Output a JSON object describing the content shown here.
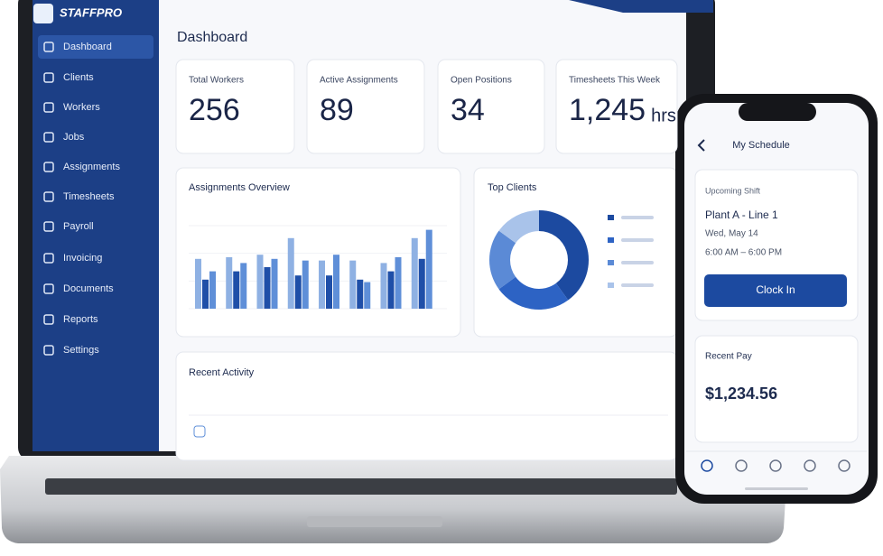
{
  "brand": "STAFFPRO",
  "sidebar": [
    "Dashboard",
    "Clients",
    "Workers",
    "Jobs",
    "Assignments",
    "Timesheets",
    "Payroll",
    "Invoicing",
    "Documents",
    "Reports",
    "Settings"
  ],
  "page_title": "Dashboard",
  "stats": [
    {
      "label": "Total Workers",
      "value": "256"
    },
    {
      "label": "Active Assignments",
      "value": "89"
    },
    {
      "label": "Open Positions",
      "value": "34"
    },
    {
      "label": "Timesheets This Week",
      "value": "1,245",
      "unit": "hrs"
    }
  ],
  "overview": {
    "title": "Assignments Overview",
    "type": "bar",
    "ylim": [
      0,
      100
    ],
    "series": [
      {
        "color": "#8fb1e3",
        "values": [
          60,
          62,
          65,
          85,
          58,
          58,
          55,
          85
        ]
      },
      {
        "color": "#1f4fa8",
        "values": [
          35,
          45,
          50,
          40,
          40,
          35,
          45,
          60
        ]
      },
      {
        "color": "#5f8fd8",
        "values": [
          45,
          55,
          60,
          58,
          65,
          32,
          62,
          95
        ]
      }
    ]
  },
  "clients": {
    "title": "Top Clients",
    "type": "pie",
    "values": [
      40,
      25,
      20,
      15
    ],
    "colors": [
      "#1c4aa0",
      "#2d63c4",
      "#5b8ad6",
      "#a9c3ea"
    ]
  },
  "activity": {
    "title": "Recent Activity"
  },
  "phone": {
    "title": "My Schedule",
    "shift": {
      "heading": "Upcoming Shift",
      "location": "Plant A - Line 1",
      "date": "Wed, May 14",
      "time": "6:00 AM – 6:00 PM",
      "button": "Clock In"
    },
    "pay": {
      "heading": "Recent Pay",
      "amount": "$1,234.56"
    }
  }
}
